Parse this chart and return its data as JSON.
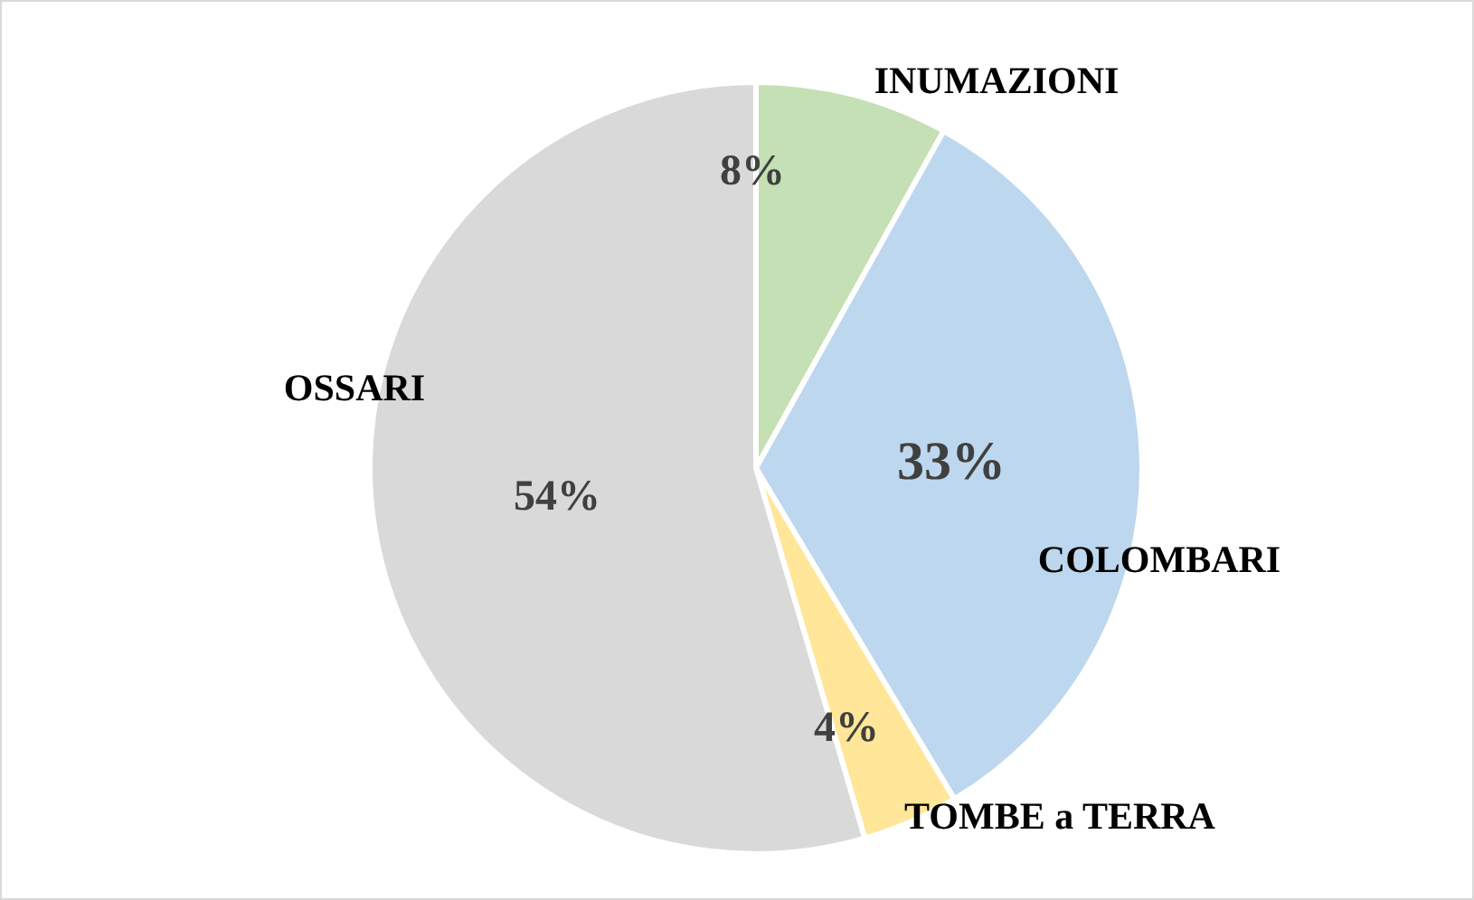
{
  "chart_data": {
    "type": "pie",
    "categories": [
      "INUMAZIONI",
      "COLOMBARI",
      "TOMBE a TERRA",
      "OSSARI"
    ],
    "values": [
      8,
      33,
      4,
      54
    ],
    "colors": [
      "#c5e0b4",
      "#bdd7ee",
      "#ffe699",
      "#d9d9d9"
    ],
    "value_labels": [
      "8%",
      "33%",
      "4%",
      "54%"
    ],
    "legend": false
  }
}
